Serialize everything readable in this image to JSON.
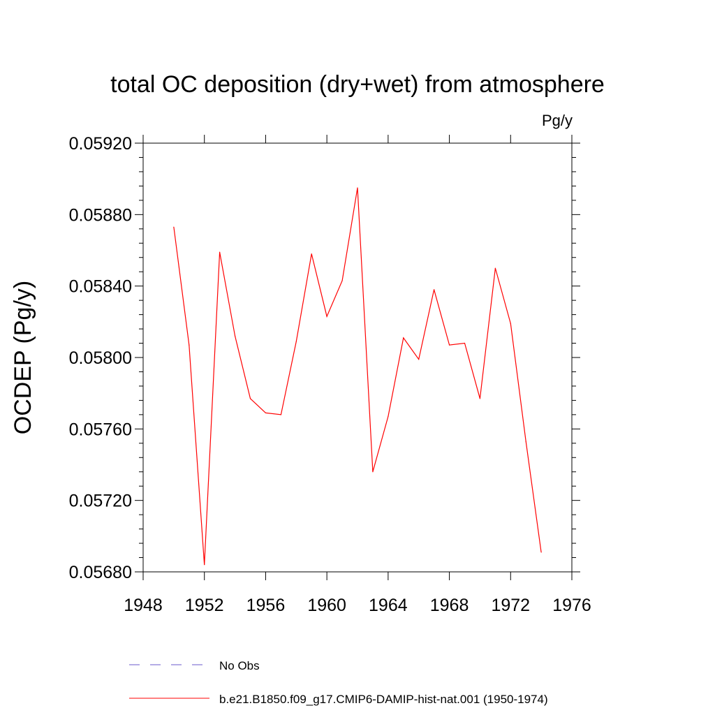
{
  "chart_data": {
    "type": "line",
    "title": "total OC deposition (dry+wet) from atmosphere",
    "units": "Pg/y",
    "ylabel": "OCDEP  (Pg/y)",
    "xlabel": "",
    "xlim": [
      1948,
      1976
    ],
    "ylim": [
      0.0568,
      0.0592
    ],
    "x_ticks": [
      "1948",
      "1952",
      "1956",
      "1960",
      "1964",
      "1968",
      "1972",
      "1976"
    ],
    "y_ticks": [
      "0.05680",
      "0.05720",
      "0.05760",
      "0.05800",
      "0.05840",
      "0.05880",
      "0.05920"
    ],
    "x": [
      1950,
      1951,
      1952,
      1953,
      1954,
      1955,
      1956,
      1957,
      1958,
      1959,
      1960,
      1961,
      1962,
      1963,
      1964,
      1965,
      1966,
      1967,
      1968,
      1969,
      1970,
      1971,
      1972,
      1973,
      1974
    ],
    "series": [
      {
        "name": "b.e21.B1850.f09_g17.CMIP6-DAMIP-hist-nat.001 (1950-1974)",
        "color": "#ff0000",
        "style": "solid",
        "values": [
          0.05873,
          0.05807,
          0.05684,
          0.05859,
          0.05812,
          0.05777,
          0.05769,
          0.05768,
          0.05809,
          0.05858,
          0.05823,
          0.05843,
          0.05895,
          0.05736,
          0.05767,
          0.05811,
          0.05799,
          0.05838,
          0.05807,
          0.05808,
          0.05777,
          0.0585,
          0.05819,
          0.05753,
          0.05691
        ]
      }
    ],
    "legend": [
      {
        "label": "No Obs",
        "color": "#6a5acd",
        "style": "dashed"
      },
      {
        "label": "b.e21.B1850.f09_g17.CMIP6-DAMIP-hist-nat.001 (1950-1974)",
        "color": "#ff0000",
        "style": "solid"
      }
    ],
    "legend_position": "bottom",
    "grid": false
  }
}
